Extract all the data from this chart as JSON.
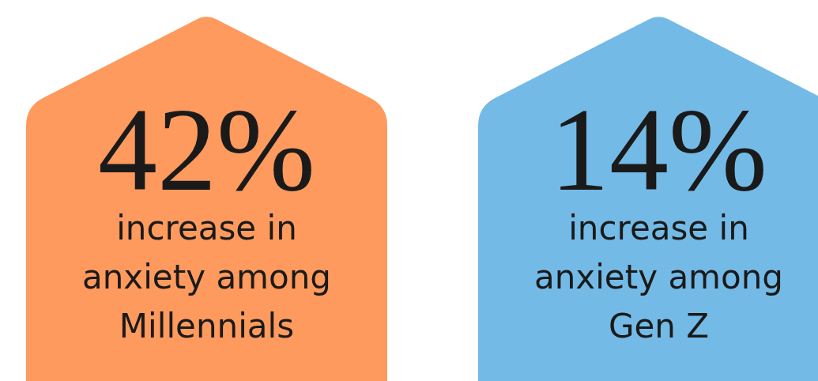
{
  "chart_data": {
    "type": "other",
    "categories": [
      "increase in anxiety among Millennials",
      "increase in anxiety among Gen Z"
    ],
    "values": [
      42,
      14
    ],
    "value_labels": [
      "42%",
      "14%"
    ],
    "colors": [
      "#fe9a5e",
      "#74bae6"
    ]
  }
}
